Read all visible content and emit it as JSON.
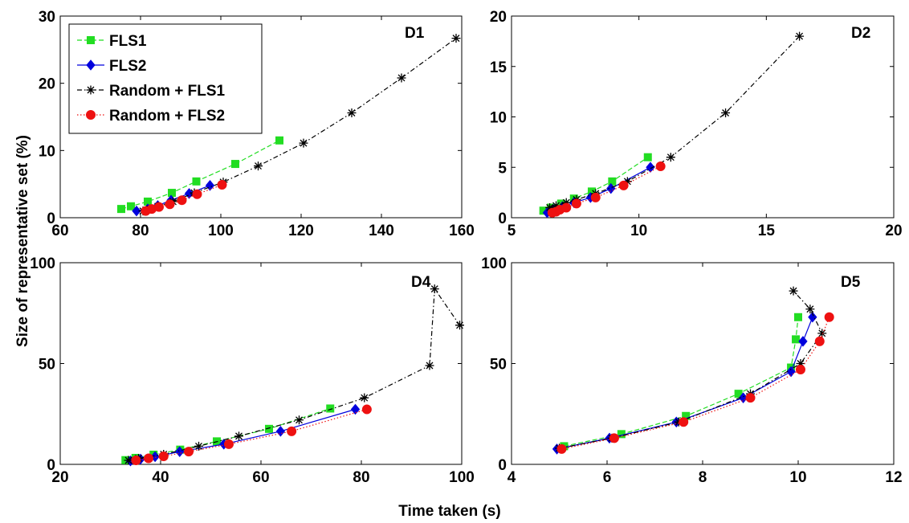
{
  "figure": {
    "xlabel": "Time taken (s)",
    "ylabel": "Size of representative set (%)"
  },
  "legend": {
    "location": "top-left of first panel",
    "entries": [
      "FLS1",
      "FLS2",
      "Random + FLS1",
      "Random + FLS2"
    ]
  },
  "series_styles": [
    {
      "name": "FLS1",
      "color": "#22dd22",
      "marker": "square",
      "line": "dashed"
    },
    {
      "name": "FLS2",
      "color": "#0000dd",
      "marker": "diamond",
      "line": "solid"
    },
    {
      "name": "Random + FLS1",
      "color": "#000000",
      "marker": "asterisk",
      "line": "dash-dot"
    },
    {
      "name": "Random + FLS2",
      "color": "#ee1111",
      "marker": "circle",
      "line": "dotted"
    }
  ],
  "chart_data": [
    {
      "type": "line",
      "title": "D1",
      "xlim": [
        60,
        160
      ],
      "ylim": [
        0,
        30
      ],
      "xticks": [
        60,
        80,
        100,
        120,
        140,
        160
      ],
      "yticks": [
        0,
        10,
        20,
        30
      ],
      "series": [
        {
          "name": "FLS1",
          "x": [
            75.2,
            77.6,
            81.8,
            87.8,
            93.9,
            103.6,
            114.6
          ],
          "y": [
            1.3,
            1.7,
            2.4,
            3.7,
            5.4,
            8.0,
            11.5
          ]
        },
        {
          "name": "FLS2",
          "x": [
            79.0,
            81.8,
            84.3,
            87.6,
            92.1,
            97.3
          ],
          "y": [
            1.0,
            1.3,
            1.8,
            2.6,
            3.6,
            4.8
          ]
        },
        {
          "name": "Random + FLS1",
          "x": [
            80.6,
            82.3,
            84.3,
            88.1,
            93.4,
            100.6,
            109.3,
            120.6,
            132.6,
            145.0,
            158.6
          ],
          "y": [
            1.0,
            1.3,
            1.7,
            2.4,
            3.7,
            5.3,
            7.7,
            11.1,
            15.6,
            20.8,
            26.7
          ]
        },
        {
          "name": "Random + FLS2",
          "x": [
            81.3,
            82.8,
            84.6,
            87.3,
            90.3,
            94.1,
            100.3
          ],
          "y": [
            1.0,
            1.3,
            1.6,
            2.0,
            2.6,
            3.5,
            4.9
          ]
        }
      ]
    },
    {
      "type": "line",
      "title": "D2",
      "xlim": [
        5,
        20
      ],
      "ylim": [
        0,
        20
      ],
      "xticks": [
        5,
        10,
        15,
        20
      ],
      "yticks": [
        0,
        5,
        10,
        15,
        20
      ],
      "series": [
        {
          "name": "FLS1",
          "x": [
            6.25,
            6.55,
            6.95,
            7.45,
            8.15,
            8.95,
            10.35
          ],
          "y": [
            0.7,
            1.0,
            1.4,
            1.9,
            2.6,
            3.6,
            6.0
          ]
        },
        {
          "name": "FLS2",
          "x": [
            6.4,
            6.65,
            7.0,
            7.45,
            8.1,
            8.9,
            10.45
          ],
          "y": [
            0.5,
            0.8,
            1.1,
            1.5,
            2.0,
            2.9,
            5.0
          ]
        },
        {
          "name": "Random + FLS1",
          "x": [
            6.5,
            6.75,
            7.15,
            7.55,
            8.3,
            9.55,
            11.25,
            13.4,
            16.3
          ],
          "y": [
            1.0,
            1.2,
            1.5,
            1.8,
            2.4,
            3.6,
            6.0,
            10.4,
            18.0
          ]
        },
        {
          "name": "Random + FLS2",
          "x": [
            6.6,
            6.75,
            6.9,
            7.15,
            7.55,
            8.3,
            9.4,
            10.85
          ],
          "y": [
            0.5,
            0.6,
            0.8,
            1.0,
            1.4,
            2.0,
            3.2,
            5.1
          ]
        }
      ]
    },
    {
      "type": "line",
      "title": "D4",
      "xlim": [
        20,
        100
      ],
      "ylim": [
        0,
        100
      ],
      "xticks": [
        20,
        40,
        60,
        80,
        100
      ],
      "yticks": [
        0,
        50,
        100
      ],
      "series": [
        {
          "name": "FLS1",
          "x": [
            33.0,
            35.0,
            38.6,
            43.9,
            51.2,
            61.6,
            73.8
          ],
          "y": [
            2.1,
            3.2,
            4.8,
            7.3,
            11.4,
            17.6,
            27.7
          ]
        },
        {
          "name": "FLS2",
          "x": [
            34.0,
            36.0,
            38.9,
            43.8,
            52.6,
            63.9,
            78.8
          ],
          "y": [
            1.7,
            2.6,
            3.8,
            6.3,
            10.0,
            16.4,
            27.3
          ]
        },
        {
          "name": "Random + FLS1",
          "x": [
            33.6,
            35.6,
            40.6,
            47.6,
            55.6,
            67.6,
            80.6,
            93.6,
            94.6,
            99.6
          ],
          "y": [
            2.0,
            3.0,
            5.0,
            9.0,
            14.0,
            22.0,
            33.0,
            49.0,
            87.0,
            69.0
          ]
        },
        {
          "name": "Random + FLS2",
          "x": [
            35.1,
            37.6,
            40.6,
            45.6,
            53.6,
            66.1,
            81.1
          ],
          "y": [
            2.0,
            3.0,
            4.0,
            6.3,
            10.0,
            16.4,
            27.3
          ]
        }
      ]
    },
    {
      "type": "line",
      "title": "D5",
      "xlim": [
        4,
        12
      ],
      "ylim": [
        0,
        100
      ],
      "xticks": [
        4,
        6,
        8,
        10,
        12
      ],
      "yticks": [
        0,
        50,
        100
      ],
      "series": [
        {
          "name": "FLS1",
          "x": [
            5.1,
            6.3,
            7.65,
            8.75,
            9.85,
            9.95,
            10.0
          ],
          "y": [
            9.0,
            15.0,
            24.0,
            35.0,
            48.0,
            62.0,
            73.0
          ]
        },
        {
          "name": "FLS2",
          "x": [
            4.95,
            6.05,
            7.45,
            8.85,
            9.85,
            10.1,
            10.3
          ],
          "y": [
            7.6,
            13.0,
            21.0,
            33.0,
            46.0,
            61.0,
            73.0
          ]
        },
        {
          "name": "Random + FLS1",
          "x": [
            5.0,
            6.1,
            7.5,
            9.0,
            10.05,
            10.5,
            10.25,
            9.9
          ],
          "y": [
            8.0,
            13.0,
            21.0,
            35.0,
            50.0,
            65.0,
            77.0,
            86.0
          ]
        },
        {
          "name": "Random + FLS2",
          "x": [
            5.05,
            6.15,
            7.6,
            9.0,
            10.05,
            10.45,
            10.65
          ],
          "y": [
            7.6,
            13.0,
            21.0,
            33.0,
            47.0,
            61.0,
            73.0
          ]
        }
      ]
    }
  ]
}
